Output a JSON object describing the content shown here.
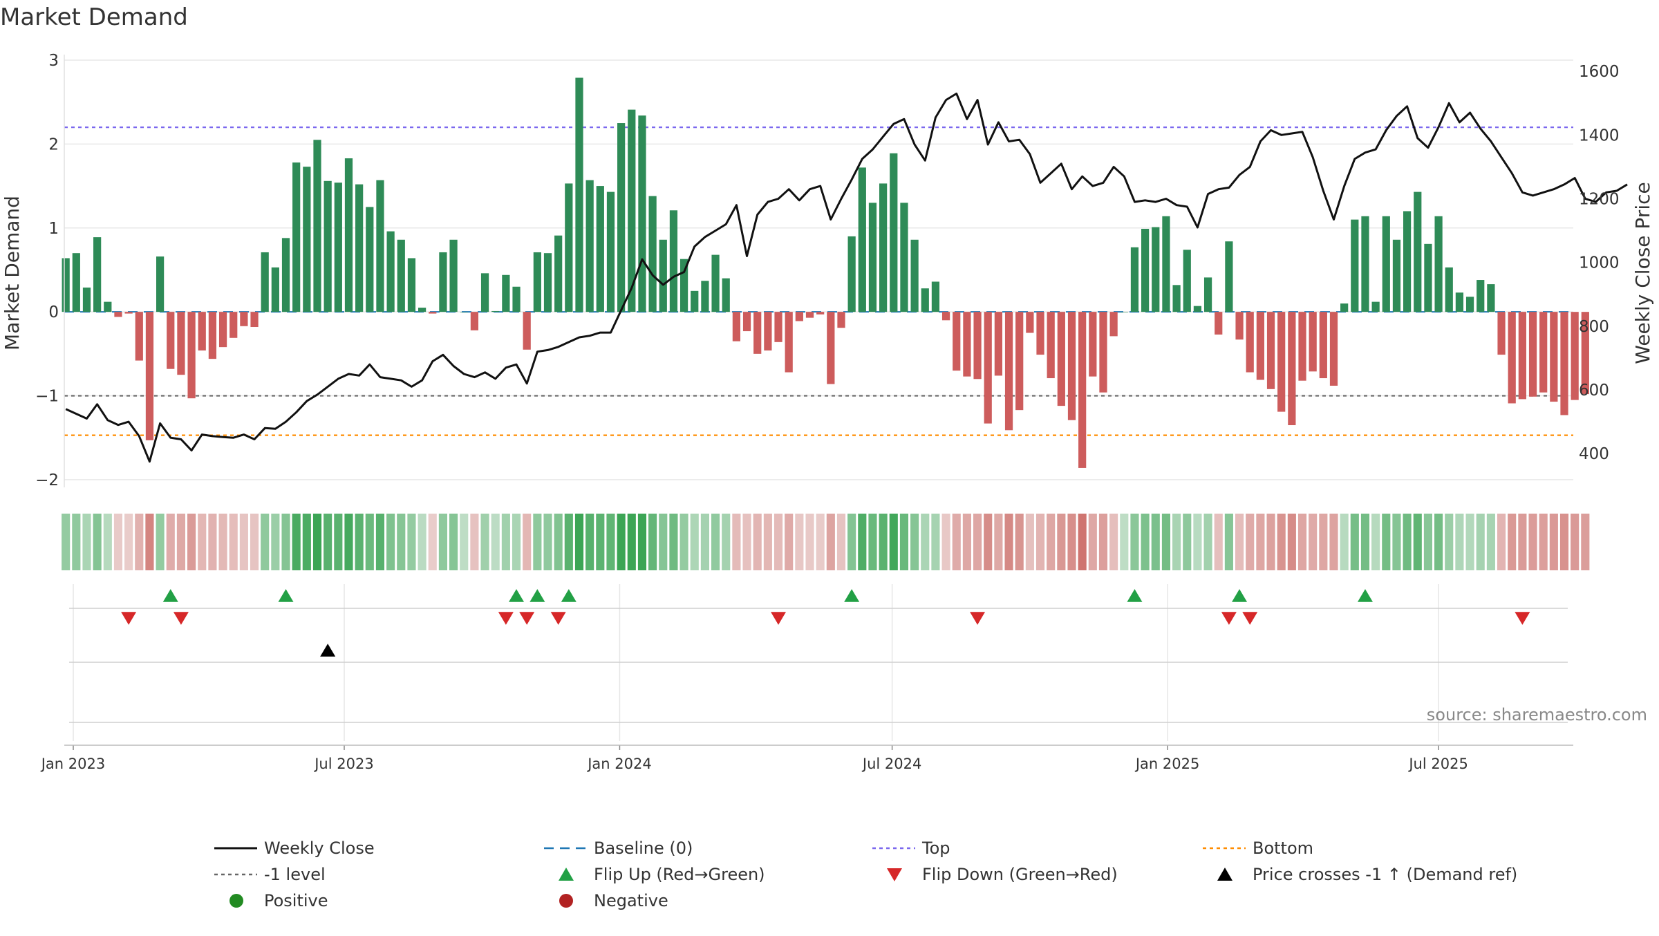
{
  "chart_data": {
    "type": "bar",
    "title": "Market Demand",
    "ylabel": "Market Demand",
    "y2label": "Weekly Close Price",
    "ylim": [
      -2.05,
      3.0
    ],
    "y2lim": [
      305,
      1635
    ],
    "yticks": [
      3,
      2,
      1,
      0,
      -1,
      -2
    ],
    "y2ticks": [
      1600,
      1400,
      1200,
      1000,
      800,
      600,
      400
    ],
    "x_start": "2022-12-26",
    "x_end": "2025-09-29",
    "xtick_labels": [
      {
        "date": "2023-01-01",
        "label": "Jan 2023"
      },
      {
        "date": "2023-07-01",
        "label": "Jul 2023"
      },
      {
        "date": "2024-01-01",
        "label": "Jan 2024"
      },
      {
        "date": "2024-07-01",
        "label": "Jul 2024"
      },
      {
        "date": "2025-01-01",
        "label": "Jan 2025"
      },
      {
        "date": "2025-07-01",
        "label": "Jul 2025"
      }
    ],
    "first_week": "2022-12-27",
    "demand": [
      0.64,
      0.7,
      0.29,
      0.89,
      0.12,
      -0.06,
      -0.02,
      -0.58,
      -1.53,
      0.66,
      -0.68,
      -0.75,
      -1.03,
      -0.46,
      -0.56,
      -0.42,
      -0.31,
      -0.17,
      -0.18,
      0.71,
      0.53,
      0.88,
      1.78,
      1.73,
      2.05,
      1.56,
      1.54,
      1.83,
      1.52,
      1.25,
      1.57,
      0.96,
      0.86,
      0.64,
      0.05,
      -0.02,
      0.71,
      0.86,
      0.0,
      -0.22,
      0.46,
      0.01,
      0.44,
      0.3,
      -0.45,
      0.71,
      0.7,
      0.91,
      1.53,
      2.79,
      1.57,
      1.5,
      1.43,
      2.25,
      2.41,
      2.34,
      1.38,
      0.86,
      1.21,
      0.63,
      0.25,
      0.37,
      0.68,
      0.4,
      -0.35,
      -0.23,
      -0.5,
      -0.46,
      -0.36,
      -0.72,
      -0.11,
      -0.07,
      -0.03,
      -0.86,
      -0.19,
      0.9,
      1.72,
      1.3,
      1.53,
      1.89,
      1.3,
      0.86,
      0.28,
      0.36,
      -0.1,
      -0.7,
      -0.77,
      -0.8,
      -1.33,
      -0.76,
      -1.41,
      -1.17,
      -0.25,
      -0.51,
      -0.79,
      -1.12,
      -1.29,
      -1.86,
      -0.77,
      -0.96,
      -0.29,
      0.0,
      0.77,
      0.99,
      1.01,
      1.14,
      0.32,
      0.74,
      0.07,
      0.41,
      -0.27,
      0.84,
      -0.33,
      -0.72,
      -0.81,
      -0.92,
      -1.19,
      -1.35,
      -0.82,
      -0.71,
      -0.79,
      -0.88,
      0.1,
      1.1,
      1.14,
      0.12,
      1.14,
      0.86,
      1.2,
      1.43,
      0.81,
      1.14,
      0.53,
      0.23,
      0.18,
      0.38,
      0.33,
      -0.51,
      -1.09,
      -1.04,
      -1.01,
      -0.96,
      -1.07,
      -1.23,
      -1.05,
      -0.98
    ],
    "close": [
      540,
      525,
      510,
      555,
      505,
      490,
      500,
      455,
      375,
      495,
      450,
      445,
      410,
      460,
      455,
      452,
      450,
      460,
      445,
      480,
      478,
      500,
      530,
      565,
      585,
      610,
      635,
      650,
      645,
      680,
      640,
      635,
      630,
      610,
      630,
      690,
      710,
      675,
      650,
      640,
      655,
      635,
      670,
      680,
      620,
      720,
      725,
      735,
      750,
      765,
      770,
      780,
      780,
      850,
      920,
      1010,
      960,
      930,
      955,
      970,
      1050,
      1080,
      1100,
      1120,
      1180,
      1020,
      1150,
      1190,
      1200,
      1230,
      1195,
      1230,
      1240,
      1135,
      1200,
      1260,
      1325,
      1355,
      1395,
      1435,
      1450,
      1370,
      1320,
      1455,
      1510,
      1530,
      1450,
      1510,
      1370,
      1440,
      1380,
      1385,
      1340,
      1250,
      1280,
      1310,
      1230,
      1270,
      1240,
      1250,
      1300,
      1270,
      1190,
      1195,
      1190,
      1200,
      1180,
      1175,
      1110,
      1215,
      1230,
      1235,
      1275,
      1300,
      1380,
      1415,
      1400,
      1405,
      1410,
      1330,
      1225,
      1135,
      1240,
      1325,
      1345,
      1355,
      1415,
      1460,
      1490,
      1390,
      1360,
      1425,
      1500,
      1440,
      1470,
      1420,
      1380,
      1330,
      1280,
      1220,
      1210,
      1220,
      1230,
      1245,
      1265,
      1200,
      1190,
      1220,
      1225,
      1245
    ],
    "colorbar_levels": [
      0.32,
      0.35,
      0.15,
      0.44,
      0.06,
      -0.03,
      -0.01,
      -0.29,
      -0.76,
      0.33,
      -0.34,
      -0.38,
      -0.52,
      -0.23,
      -0.28,
      -0.21,
      -0.16,
      -0.09,
      -0.09,
      0.36,
      0.27,
      0.44,
      0.89,
      0.87,
      1.0,
      0.78,
      0.77,
      0.92,
      0.76,
      0.63,
      0.79,
      0.48,
      0.43,
      0.32,
      0.03,
      -0.01,
      0.36,
      0.43,
      0.0,
      -0.11,
      0.23,
      0.01,
      0.22,
      0.15,
      -0.23,
      0.36,
      0.35,
      0.46,
      0.77,
      1.0,
      0.79,
      0.75,
      0.72,
      1.0,
      1.0,
      1.0,
      0.69,
      0.43,
      0.61,
      0.32,
      0.13,
      0.19,
      0.34,
      0.2,
      -0.18,
      -0.12,
      -0.25,
      -0.23,
      -0.18,
      -0.36,
      -0.06,
      -0.04,
      -0.02,
      -0.43,
      -0.1,
      0.45,
      0.86,
      0.65,
      0.77,
      0.95,
      0.65,
      0.43,
      0.14,
      0.18,
      -0.05,
      -0.35,
      -0.39,
      -0.4,
      -0.67,
      -0.38,
      -0.71,
      -0.59,
      -0.13,
      -0.26,
      -0.4,
      -0.56,
      -0.65,
      -0.93,
      -0.39,
      -0.48,
      -0.15,
      0.0,
      0.39,
      0.5,
      0.51,
      0.57,
      0.16,
      0.37,
      0.04,
      0.21,
      -0.14,
      0.42,
      -0.17,
      -0.36,
      -0.41,
      -0.46,
      -0.6,
      -0.68,
      -0.41,
      -0.36,
      -0.4,
      -0.44,
      0.05,
      0.55,
      0.57,
      0.06,
      0.57,
      0.43,
      0.6,
      0.72,
      0.41,
      0.57,
      0.27,
      0.12,
      0.09,
      0.19,
      0.17,
      -0.26,
      -0.55,
      -0.52,
      -0.51,
      -0.48,
      -0.54,
      -0.62,
      -0.53,
      -0.49
    ],
    "flip_up_dates": [
      "2023-03-07",
      "2023-05-23",
      "2023-10-24",
      "2023-11-07",
      "2023-11-28",
      "2024-06-04",
      "2024-12-10",
      "2025-02-18",
      "2025-05-13"
    ],
    "flip_down_dates": [
      "2023-02-07",
      "2023-03-14",
      "2023-10-17",
      "2023-10-31",
      "2023-11-21",
      "2024-04-16",
      "2024-08-27",
      "2025-02-11",
      "2025-02-25",
      "2025-08-26"
    ],
    "cross_up_dates": [
      "2023-06-20"
    ],
    "reference_lines": {
      "top": 2.2,
      "minus_one": -1,
      "bottom": -1.47
    },
    "source_text": "source: sharemaestro.com",
    "colors": {
      "positive_bar": "#2e8b57",
      "negative_bar": "#cd5c5c",
      "close_line": "#111111",
      "baseline": "#1f77b4",
      "top": "#7b68ee",
      "minus_one": "#666666",
      "bottom": "#ff8c00",
      "flip_up": "#22a045",
      "flip_down": "#d62728",
      "cross_up": "#000000",
      "positive_dot": "#228b22",
      "negative_dot": "#b22222"
    },
    "legend": {
      "placement": "bottom",
      "items": [
        {
          "label": "Weekly Close",
          "marker": "solid-line",
          "color": "#111111"
        },
        {
          "label": "Baseline (0)",
          "marker": "dashed-line",
          "color": "#1f77b4"
        },
        {
          "label": "Top",
          "marker": "dotted-line",
          "color": "#7b68ee"
        },
        {
          "label": "Bottom",
          "marker": "dotted-line",
          "color": "#ff8c00"
        },
        {
          "label": "-1 level",
          "marker": "dotted-line",
          "color": "#666666"
        },
        {
          "label": "Flip Up (Red→Green)",
          "marker": "triangle-up",
          "color": "#22a045"
        },
        {
          "label": "Flip Down (Green→Red)",
          "marker": "triangle-down",
          "color": "#d62728"
        },
        {
          "label": "Price crosses -1 ↑ (Demand ref)",
          "marker": "triangle-up",
          "color": "#000000"
        },
        {
          "label": "Positive",
          "marker": "circle",
          "color": "#228b22"
        },
        {
          "label": "Negative",
          "marker": "circle",
          "color": "#b22222"
        }
      ]
    }
  }
}
